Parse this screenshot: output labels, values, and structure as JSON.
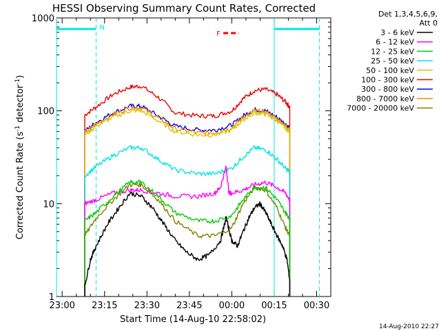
{
  "chart_data": {
    "type": "line",
    "title": "HESSI Observing Summary Count Rates, Corrected",
    "xlabel": "Start Time (14-Aug-10 22:58:02)",
    "ylabel_main": "Corrected Count Rate (s",
    "ylabel_sup1": "-1",
    "ylabel_mid": " detector",
    "ylabel_sup2": "-1",
    "ylabel_end": ")",
    "date_stamp": "14-Aug-2010 22:27",
    "x_scale": "time (minutes after 22:58:02)",
    "y_scale": "log",
    "xlim": [
      0,
      97
    ],
    "ylim": [
      1,
      1000
    ],
    "x_ticks": [
      {
        "label": "23:00",
        "value": 2
      },
      {
        "label": "23:15",
        "value": 17
      },
      {
        "label": "23:30",
        "value": 32
      },
      {
        "label": "23:45",
        "value": 47
      },
      {
        "label": "00:00",
        "value": 62
      },
      {
        "label": "00:15",
        "value": 77
      },
      {
        "label": "00:30",
        "value": 92
      }
    ],
    "y_ticks": [
      {
        "label": "1",
        "value": 1
      },
      {
        "label": "10",
        "value": 10
      },
      {
        "label": "100",
        "value": 100
      },
      {
        "label": "1000",
        "value": 1000
      }
    ],
    "legend": {
      "placement": "right",
      "header_line1": "Det 1,3,4,5,6,9,",
      "header_line2": "Att 0",
      "entries": [
        {
          "label": "3 - 6 keV",
          "color": "#000000"
        },
        {
          "label": "6 - 12 keV",
          "color": "#ff00ff"
        },
        {
          "label": "12 - 25 keV",
          "color": "#00cc00"
        },
        {
          "label": "25 - 50 keV",
          "color": "#00e5e5"
        },
        {
          "label": "50 - 100 keV",
          "color": "#d8c800"
        },
        {
          "label": "100 - 300 keV",
          "color": "#ee0000"
        },
        {
          "label": "300 - 800 keV",
          "color": "#0000ee"
        },
        {
          "label": "800 - 7000 keV",
          "color": "#ff8800"
        },
        {
          "label": "7000 - 20000 keV",
          "color": "#808000"
        }
      ]
    },
    "night_markers": [
      {
        "label": "N",
        "start": 0,
        "end": 14,
        "color": "#00e5e5"
      },
      {
        "label": "",
        "start": 77,
        "end": 93,
        "color": "#00e5e5"
      }
    ],
    "flare_marker": {
      "label": "F",
      "start": 59,
      "end": 63,
      "y": 800,
      "color": "#ff0000"
    },
    "vertical_lines": [
      {
        "x": 0,
        "style": "solid"
      },
      {
        "x": 14,
        "style": "dashed"
      },
      {
        "x": 77,
        "style": "solid"
      },
      {
        "x": 93,
        "style": "dashed"
      }
    ],
    "series": [
      {
        "name": "100 - 300 keV",
        "color": "#ee0000",
        "x": [
          10,
          14,
          20,
          26,
          30,
          36,
          42,
          50,
          56,
          62,
          66,
          70,
          74,
          78,
          81,
          82.5
        ],
        "y": [
          90,
          110,
          150,
          180,
          185,
          140,
          95,
          88,
          88,
          100,
          135,
          165,
          170,
          150,
          125,
          110
        ]
      },
      {
        "name": "300 - 800 keV",
        "color": "#0000ee",
        "x": [
          10,
          14,
          20,
          26,
          30,
          36,
          42,
          50,
          56,
          62,
          66,
          70,
          74,
          78,
          81,
          82.5
        ],
        "y": [
          60,
          75,
          95,
          112,
          112,
          88,
          68,
          62,
          62,
          70,
          88,
          103,
          100,
          85,
          72,
          65
        ]
      },
      {
        "name": "800 - 7000 keV",
        "color": "#ff8800",
        "x": [
          10,
          14,
          20,
          26,
          30,
          36,
          42,
          50,
          56,
          62,
          66,
          70,
          74,
          78,
          81,
          82.5
        ],
        "y": [
          58,
          72,
          92,
          108,
          108,
          84,
          64,
          58,
          58,
          66,
          85,
          100,
          97,
          82,
          70,
          63
        ]
      },
      {
        "name": "50 - 100 keV",
        "color": "#d8c800",
        "x": [
          10,
          14,
          20,
          26,
          30,
          36,
          42,
          50,
          56,
          62,
          66,
          70,
          74,
          78,
          81,
          82.5
        ],
        "y": [
          55,
          68,
          85,
          100,
          100,
          78,
          60,
          55,
          55,
          62,
          80,
          95,
          92,
          78,
          65,
          60
        ]
      },
      {
        "name": "25 - 50 keV",
        "color": "#00e5e5",
        "x": [
          10,
          14,
          20,
          26,
          30,
          36,
          42,
          50,
          56,
          62,
          66,
          70,
          74,
          78,
          81,
          82.5
        ],
        "y": [
          20,
          25,
          33,
          40,
          40,
          30,
          23,
          21,
          21,
          24,
          32,
          40,
          38,
          30,
          24,
          22
        ]
      },
      {
        "name": "6 - 12 keV",
        "color": "#ff00ff",
        "x": [
          10,
          14,
          20,
          26,
          30,
          36,
          42,
          50,
          56,
          58,
          60,
          61,
          62,
          66,
          70,
          74,
          78,
          81,
          82.5
        ],
        "y": [
          10,
          11,
          13,
          14,
          14,
          13,
          12,
          12,
          13,
          15,
          25,
          13,
          13,
          14,
          16,
          17,
          15,
          13,
          11
        ]
      },
      {
        "name": "7000 - 20000 keV",
        "color": "#808000",
        "x": [
          10,
          14,
          20,
          26,
          30,
          36,
          42,
          50,
          56,
          62,
          66,
          70,
          74,
          78,
          81,
          82.5
        ],
        "y": [
          4.5,
          7,
          11,
          16,
          16,
          11,
          6.5,
          4.5,
          4.5,
          5.5,
          10,
          15,
          14,
          9,
          5.5,
          4.5
        ]
      },
      {
        "name": "12 - 25 keV",
        "color": "#00cc00",
        "x": [
          10,
          14,
          20,
          26,
          30,
          36,
          42,
          50,
          56,
          62,
          66,
          70,
          74,
          78,
          81,
          82.5
        ],
        "y": [
          6.5,
          8,
          12,
          17,
          17,
          12,
          8,
          6.5,
          6.5,
          7.5,
          11,
          15,
          15,
          11,
          8,
          7
        ]
      },
      {
        "name": "3 - 6 keV",
        "color": "#000000",
        "x": [
          10,
          12,
          14,
          18,
          22,
          26,
          30,
          34,
          38,
          42,
          46,
          50,
          54,
          58,
          60,
          62,
          64,
          66,
          68,
          70,
          72,
          74,
          76,
          78,
          80,
          81.5,
          82.5
        ],
        "y": [
          1.3,
          2.5,
          3.5,
          6,
          9,
          13,
          12,
          9,
          6,
          4,
          3,
          2.5,
          2.8,
          4,
          7,
          4,
          3.5,
          5,
          7,
          9,
          10,
          8,
          6,
          4.5,
          3.5,
          2.5,
          1.5
        ]
      }
    ]
  }
}
